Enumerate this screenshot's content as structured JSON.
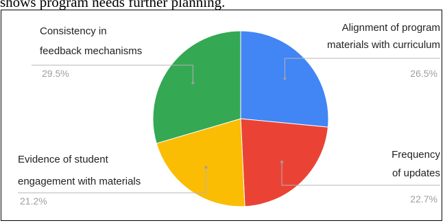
{
  "page": {
    "top_text": "shows program needs further planning."
  },
  "chart_data": {
    "type": "pie",
    "start_angle_deg": 0,
    "direction": "clockwise",
    "slices": [
      {
        "label_lines": [
          "Alignment of program",
          "materials with curriculum"
        ],
        "value": 26.5,
        "percent_label": "26.5%",
        "color": "#4285F4"
      },
      {
        "label_lines": [
          "Frequency",
          "of updates"
        ],
        "value": 22.7,
        "percent_label": "22.7%",
        "color": "#EA4335"
      },
      {
        "label_lines": [
          "Evidence of student",
          "engagement with materials"
        ],
        "value": 21.2,
        "percent_label": "21.2%",
        "color": "#FBBC04"
      },
      {
        "label_lines": [
          "Consistency in",
          "feedback mechanisms"
        ],
        "value": 29.5,
        "percent_label": "29.5%",
        "color": "#34A853"
      }
    ]
  }
}
